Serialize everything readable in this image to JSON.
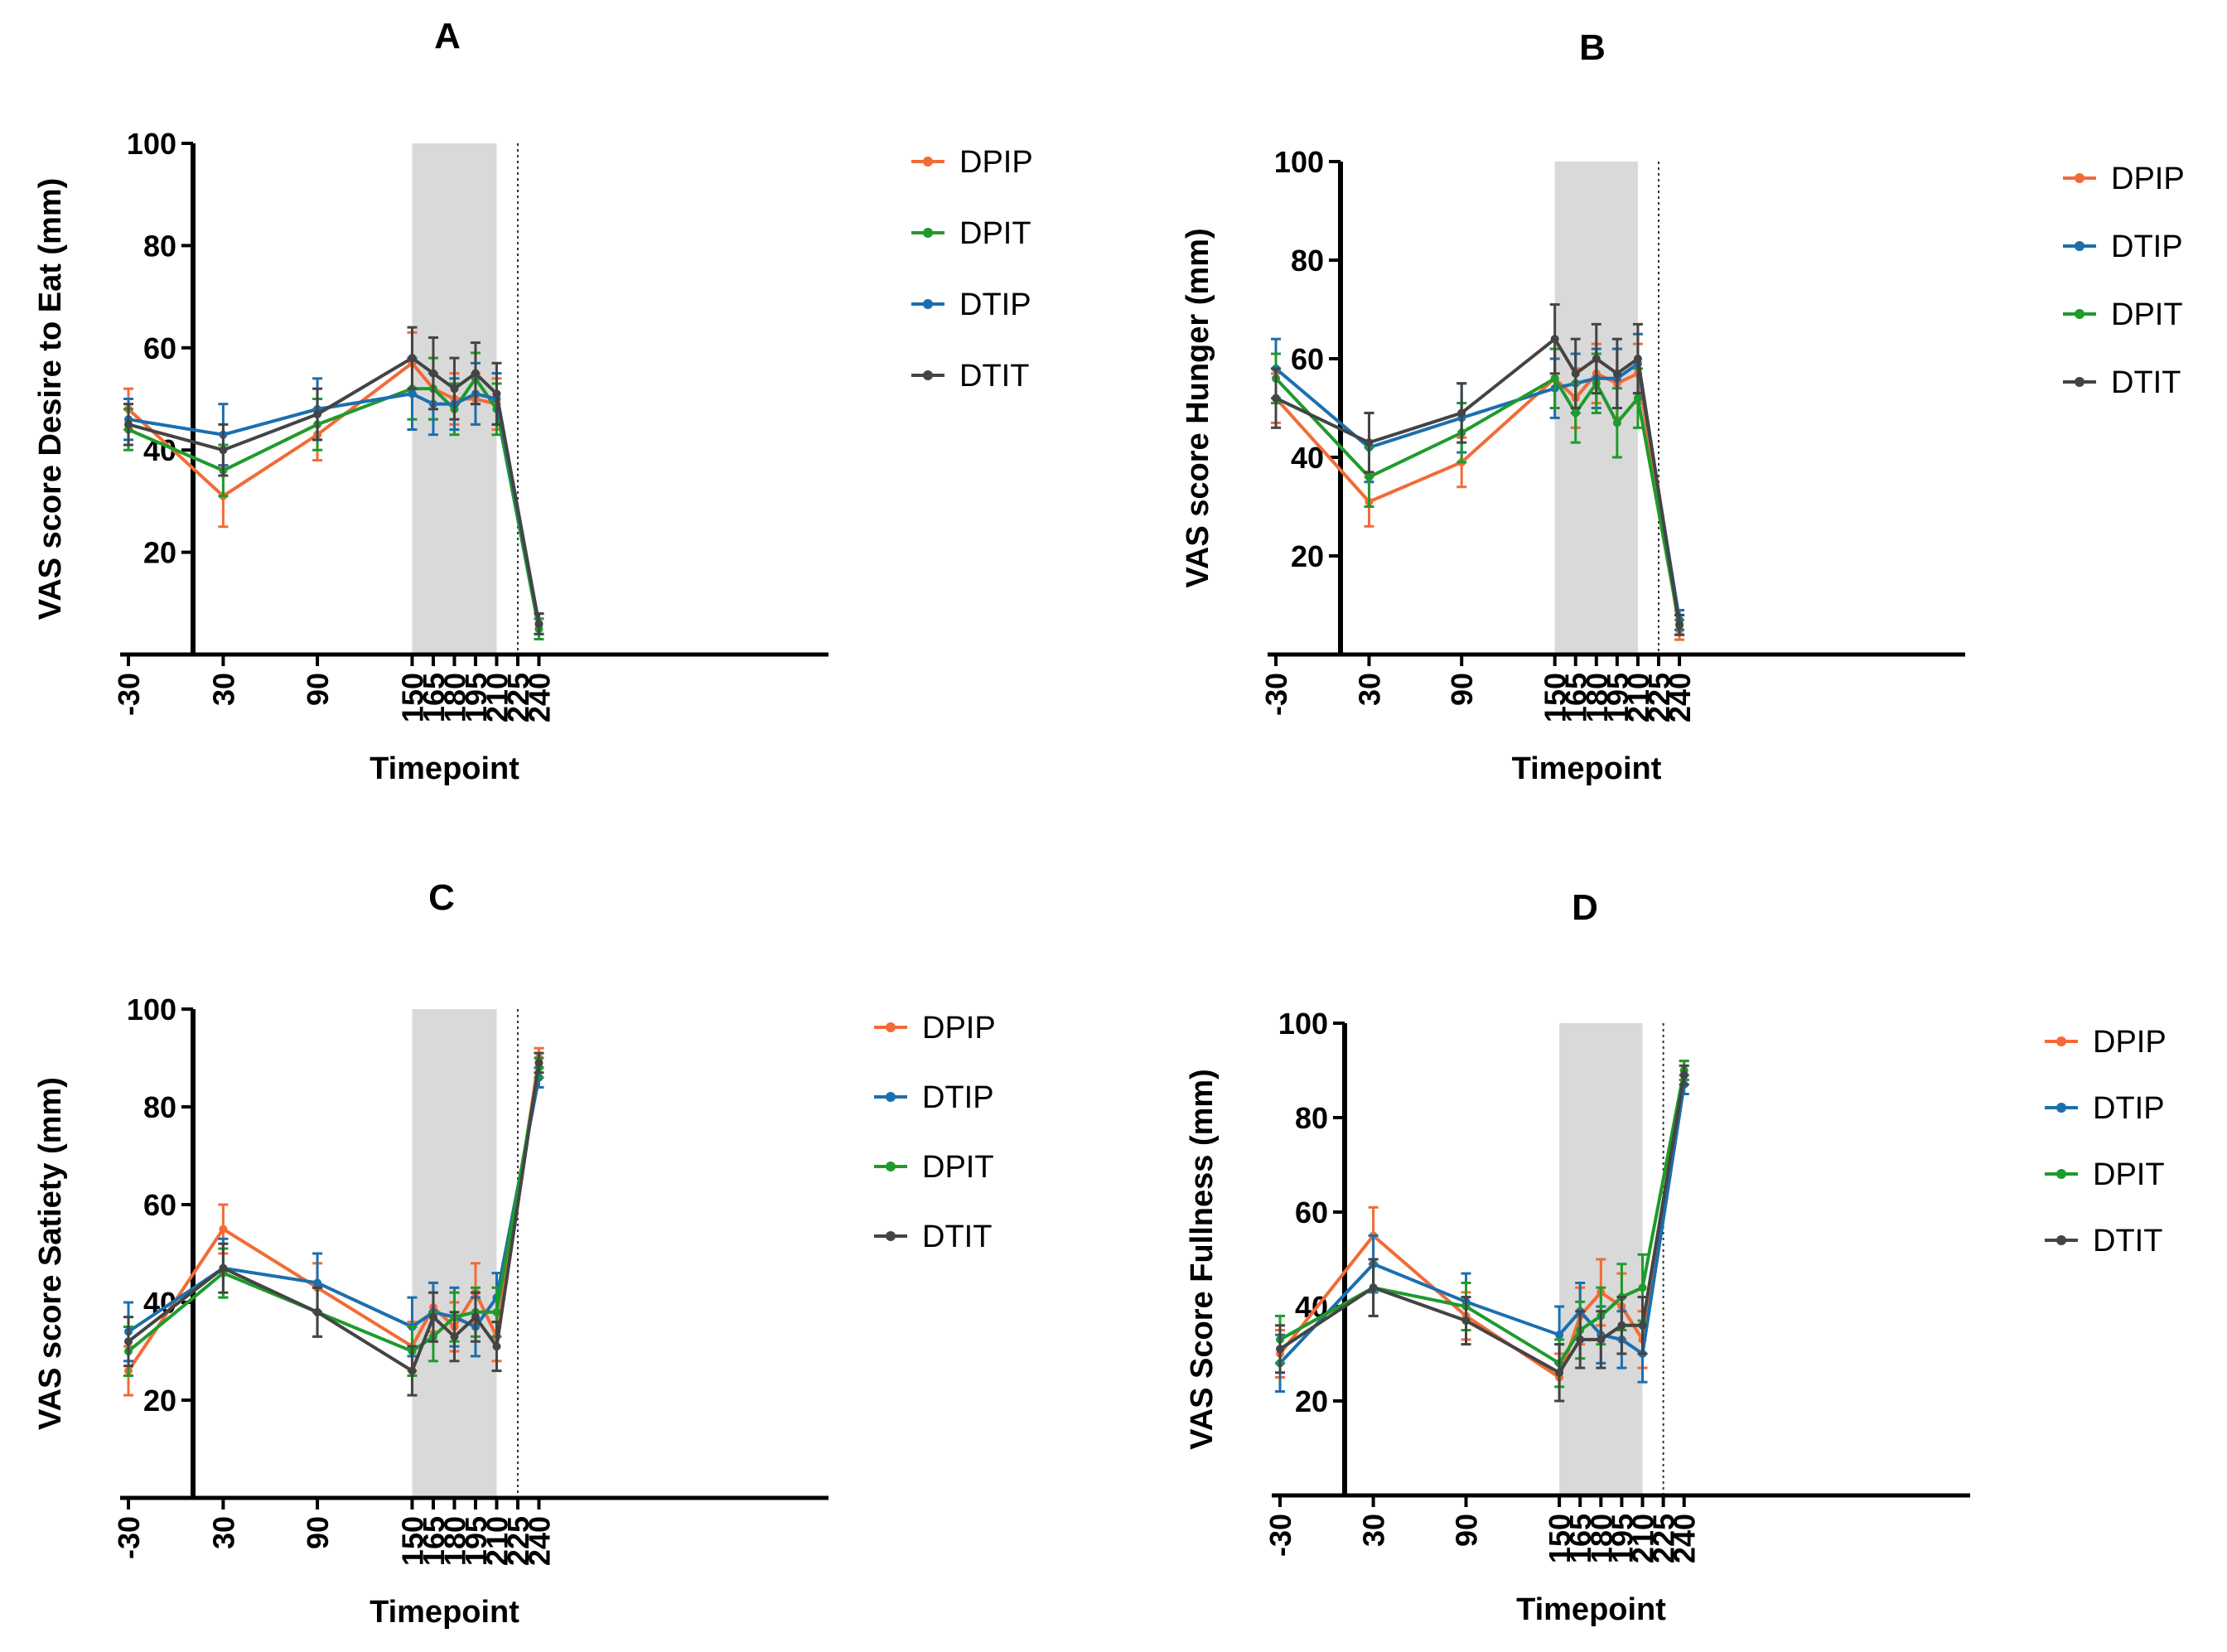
{
  "figure": {
    "colors": {
      "DPIP": "#F26B36",
      "DPIT": "#1E9B2B",
      "DTIP": "#1B6FAE",
      "DTIT": "#444444",
      "shade": "#D9D9D9"
    }
  },
  "chart_data": [
    {
      "panel": "A",
      "type": "line",
      "ylabel": "VAS score Desire to Eat (mm)",
      "xlabel": "Timepoint",
      "ylim": [
        0,
        100
      ],
      "yticks": [
        "20",
        "40",
        "60",
        "80",
        "100"
      ],
      "x": [
        -30,
        30,
        90,
        150,
        165,
        180,
        195,
        210,
        225,
        240
      ],
      "xtick_labels": [
        "-30",
        "30",
        "90",
        "150",
        "165",
        "180",
        "195",
        "210",
        "225",
        "240"
      ],
      "shaded_range": [
        150,
        210
      ],
      "vline": 225,
      "legend": [
        "DPIP",
        "DPIT",
        "DTIP",
        "DTIT"
      ],
      "series": [
        {
          "name": "DPIP",
          "points": [
            [
              -30,
              48,
              4
            ],
            [
              30,
              31,
              6
            ],
            [
              90,
              43,
              5
            ],
            [
              150,
              57,
              6
            ],
            [
              165,
              52,
              6
            ],
            [
              180,
              50,
              5
            ],
            [
              195,
              50,
              5
            ],
            [
              210,
              49,
              5
            ],
            [
              240,
              5,
              2
            ]
          ]
        },
        {
          "name": "DPIT",
          "points": [
            [
              -30,
              44,
              4
            ],
            [
              30,
              36,
              5
            ],
            [
              90,
              45,
              5
            ],
            [
              150,
              52,
              6
            ],
            [
              165,
              52,
              6
            ],
            [
              180,
              48,
              5
            ],
            [
              195,
              54,
              5
            ],
            [
              210,
              48,
              5
            ],
            [
              240,
              5,
              2
            ]
          ]
        },
        {
          "name": "DTIP",
          "points": [
            [
              -30,
              46,
              4
            ],
            [
              30,
              43,
              6
            ],
            [
              90,
              48,
              6
            ],
            [
              150,
              51,
              7
            ],
            [
              165,
              49,
              6
            ],
            [
              180,
              49,
              5
            ],
            [
              195,
              51,
              6
            ],
            [
              210,
              50,
              5
            ],
            [
              240,
              6,
              2
            ]
          ]
        },
        {
          "name": "DTIT",
          "points": [
            [
              -30,
              45,
              4
            ],
            [
              30,
              40,
              5
            ],
            [
              90,
              47,
              5
            ],
            [
              150,
              58,
              6
            ],
            [
              165,
              55,
              7
            ],
            [
              180,
              52,
              6
            ],
            [
              195,
              55,
              6
            ],
            [
              210,
              51,
              6
            ],
            [
              240,
              6,
              2
            ]
          ]
        }
      ]
    },
    {
      "panel": "B",
      "type": "line",
      "ylabel": "VAS score Hunger (mm)",
      "xlabel": "Timepoint",
      "ylim": [
        0,
        100
      ],
      "yticks": [
        "20",
        "40",
        "60",
        "80",
        "100"
      ],
      "x": [
        -30,
        30,
        90,
        150,
        165,
        180,
        195,
        210,
        225,
        240
      ],
      "xtick_labels": [
        "-30",
        "30",
        "90",
        "150",
        "165",
        "180",
        "195",
        "210",
        "225",
        "240"
      ],
      "shaded_range": [
        150,
        210
      ],
      "vline": 225,
      "legend": [
        "DPIP",
        "DTIP",
        "DPIT",
        "DTIT"
      ],
      "series": [
        {
          "name": "DPIP",
          "points": [
            [
              -30,
              52,
              5
            ],
            [
              30,
              31,
              5
            ],
            [
              90,
              39,
              5
            ],
            [
              150,
              56,
              6
            ],
            [
              165,
              52,
              6
            ],
            [
              180,
              57,
              6
            ],
            [
              195,
              55,
              7
            ],
            [
              210,
              57,
              6
            ],
            [
              240,
              5,
              2
            ]
          ]
        },
        {
          "name": "DTIP",
          "points": [
            [
              -30,
              58,
              6
            ],
            [
              30,
              42,
              7
            ],
            [
              90,
              48,
              7
            ],
            [
              150,
              54,
              6
            ],
            [
              165,
              55,
              6
            ],
            [
              180,
              56,
              6
            ],
            [
              195,
              56,
              6
            ],
            [
              210,
              59,
              6
            ],
            [
              240,
              7,
              2
            ]
          ]
        },
        {
          "name": "DPIT",
          "points": [
            [
              -30,
              56,
              5
            ],
            [
              30,
              36,
              6
            ],
            [
              90,
              45,
              6
            ],
            [
              150,
              56,
              6
            ],
            [
              165,
              49,
              6
            ],
            [
              180,
              55,
              6
            ],
            [
              195,
              47,
              7
            ],
            [
              210,
              52,
              6
            ],
            [
              240,
              6,
              2
            ]
          ]
        },
        {
          "name": "DTIT",
          "points": [
            [
              -30,
              52,
              6
            ],
            [
              30,
              43,
              6
            ],
            [
              90,
              49,
              6
            ],
            [
              150,
              64,
              7
            ],
            [
              165,
              57,
              7
            ],
            [
              180,
              60,
              7
            ],
            [
              195,
              57,
              7
            ],
            [
              210,
              60,
              7
            ],
            [
              240,
              6,
              2
            ]
          ]
        }
      ]
    },
    {
      "panel": "C",
      "type": "line",
      "ylabel": "VAS score Satiety (mm)",
      "xlabel": "Timepoint",
      "ylim": [
        0,
        100
      ],
      "yticks": [
        "20",
        "40",
        "60",
        "80",
        "100"
      ],
      "x": [
        -30,
        30,
        90,
        150,
        165,
        180,
        195,
        210,
        225,
        240
      ],
      "xtick_labels": [
        "-30",
        "30",
        "90",
        "150",
        "165",
        "180",
        "195",
        "210",
        "225",
        "240"
      ],
      "shaded_range": [
        150,
        210
      ],
      "vline": 225,
      "legend": [
        "DPIP",
        "DTIP",
        "DPIT",
        "DTIT"
      ],
      "series": [
        {
          "name": "DPIP",
          "points": [
            [
              -30,
              26,
              5
            ],
            [
              30,
              55,
              5
            ],
            [
              90,
              43,
              5
            ],
            [
              150,
              31,
              5
            ],
            [
              165,
              39,
              5
            ],
            [
              180,
              35,
              5
            ],
            [
              195,
              42,
              6
            ],
            [
              210,
              33,
              5
            ],
            [
              240,
              90,
              2
            ]
          ]
        },
        {
          "name": "DTIP",
          "points": [
            [
              -30,
              34,
              6
            ],
            [
              30,
              47,
              6
            ],
            [
              90,
              44,
              6
            ],
            [
              150,
              35,
              6
            ],
            [
              165,
              38,
              6
            ],
            [
              180,
              37,
              6
            ],
            [
              195,
              35,
              6
            ],
            [
              210,
              41,
              5
            ],
            [
              240,
              86,
              2
            ]
          ]
        },
        {
          "name": "DPIT",
          "points": [
            [
              -30,
              30,
              5
            ],
            [
              30,
              46,
              5
            ],
            [
              90,
              38,
              5
            ],
            [
              150,
              30,
              5
            ],
            [
              165,
              33,
              5
            ],
            [
              180,
              37,
              5
            ],
            [
              195,
              38,
              5
            ],
            [
              210,
              38,
              5
            ],
            [
              240,
              88,
              2
            ]
          ]
        },
        {
          "name": "DTIT",
          "points": [
            [
              -30,
              32,
              5
            ],
            [
              30,
              47,
              5
            ],
            [
              90,
              38,
              5
            ],
            [
              150,
              26,
              5
            ],
            [
              165,
              37,
              5
            ],
            [
              180,
              33,
              5
            ],
            [
              195,
              37,
              5
            ],
            [
              210,
              31,
              5
            ],
            [
              240,
              89,
              2
            ]
          ]
        }
      ]
    },
    {
      "panel": "D",
      "type": "line",
      "ylabel": "VAS Score Fullness (mm)",
      "xlabel": "Timepoint",
      "ylim": [
        0,
        100
      ],
      "yticks": [
        "20",
        "40",
        "60",
        "80",
        "100"
      ],
      "x": [
        -30,
        30,
        90,
        150,
        165,
        180,
        195,
        210,
        225,
        240
      ],
      "xtick_labels": [
        "-30",
        "30",
        "90",
        "150",
        "165",
        "180",
        "195",
        "210",
        "225",
        "240"
      ],
      "shaded_range": [
        150,
        210
      ],
      "vline": 225,
      "legend": [
        "DPIP",
        "DTIP",
        "DPIT",
        "DTIT"
      ],
      "series": [
        {
          "name": "DPIP",
          "points": [
            [
              -30,
              30,
              5
            ],
            [
              30,
              55,
              6
            ],
            [
              90,
              38,
              5
            ],
            [
              150,
              25,
              5
            ],
            [
              165,
              38,
              6
            ],
            [
              180,
              43,
              7
            ],
            [
              195,
              40,
              7
            ],
            [
              210,
              33,
              6
            ],
            [
              240,
              90,
              2
            ]
          ]
        },
        {
          "name": "DTIP",
          "points": [
            [
              -30,
              28,
              6
            ],
            [
              30,
              49,
              6
            ],
            [
              90,
              41,
              6
            ],
            [
              150,
              34,
              6
            ],
            [
              165,
              39,
              6
            ],
            [
              180,
              34,
              6
            ],
            [
              195,
              33,
              6
            ],
            [
              210,
              30,
              6
            ],
            [
              240,
              87,
              2
            ]
          ]
        },
        {
          "name": "DPIT",
          "points": [
            [
              -30,
              33,
              5
            ],
            [
              30,
              44,
              6
            ],
            [
              90,
              40,
              5
            ],
            [
              150,
              28,
              5
            ],
            [
              165,
              35,
              6
            ],
            [
              180,
              38,
              6
            ],
            [
              195,
              42,
              7
            ],
            [
              210,
              44,
              7
            ],
            [
              240,
              90,
              2
            ]
          ]
        },
        {
          "name": "DTIT",
          "points": [
            [
              -30,
              31,
              5
            ],
            [
              30,
              44,
              6
            ],
            [
              90,
              37,
              5
            ],
            [
              150,
              26,
              6
            ],
            [
              165,
              33,
              6
            ],
            [
              180,
              33,
              6
            ],
            [
              195,
              36,
              6
            ],
            [
              210,
              36,
              6
            ],
            [
              240,
              89,
              2
            ]
          ]
        }
      ]
    }
  ]
}
